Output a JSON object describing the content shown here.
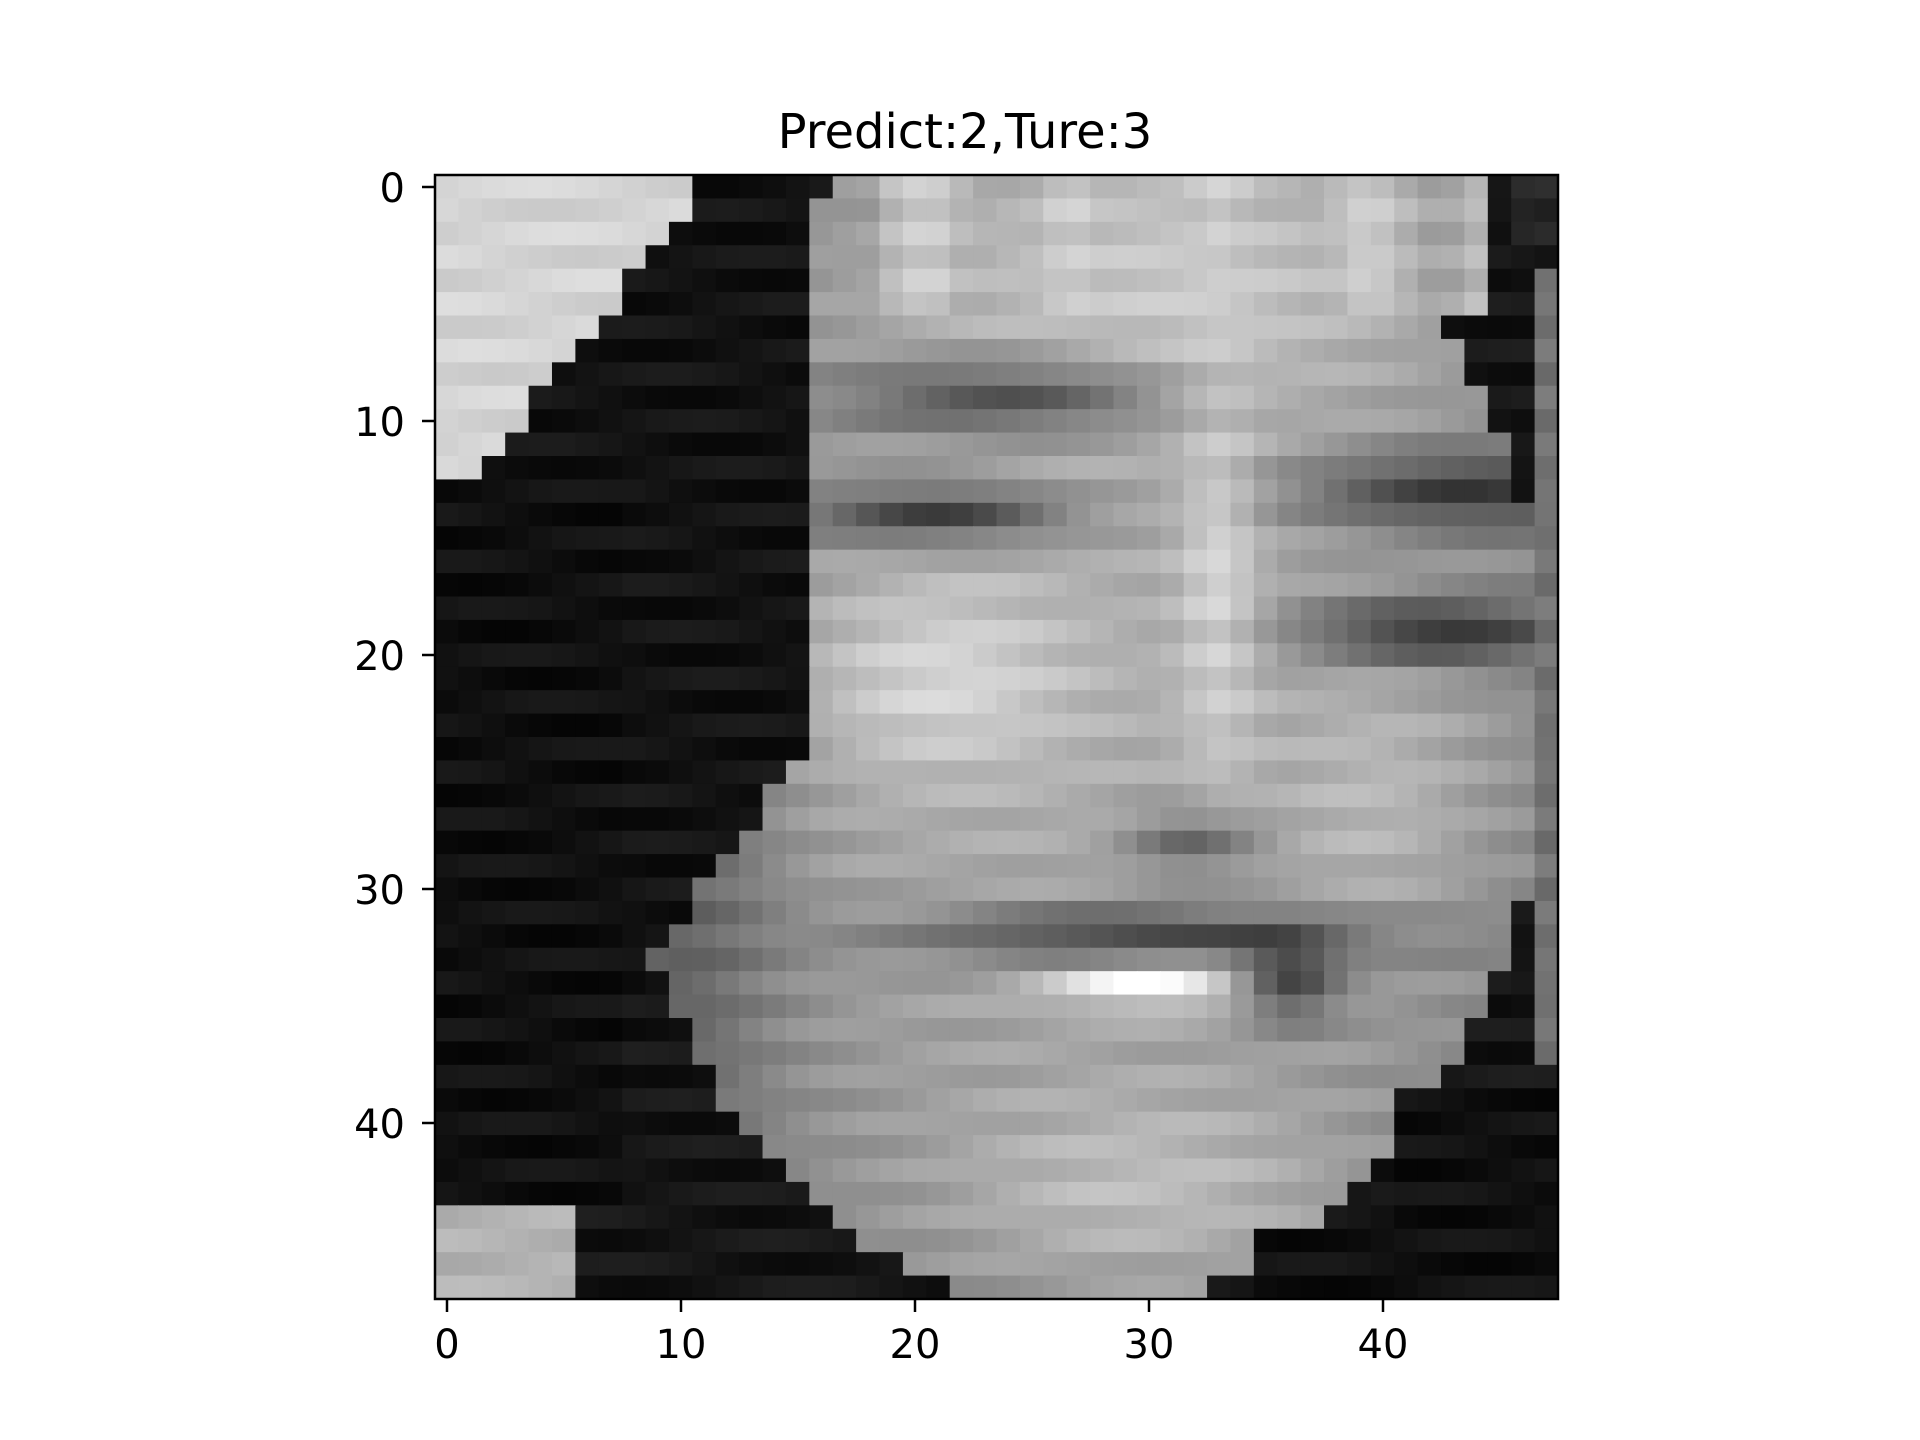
{
  "title": "Predict:2,Ture:3",
  "image": {
    "description_name": "grayscale-face-image",
    "grid_size": 48,
    "colormap": "gray"
  },
  "axes": {
    "x_ticks": [
      "0",
      "10",
      "20",
      "30",
      "40"
    ],
    "y_ticks": [
      "0",
      "10",
      "20",
      "30",
      "40"
    ]
  },
  "colors": {
    "background": "#ffffff",
    "axis": "#000000"
  }
}
